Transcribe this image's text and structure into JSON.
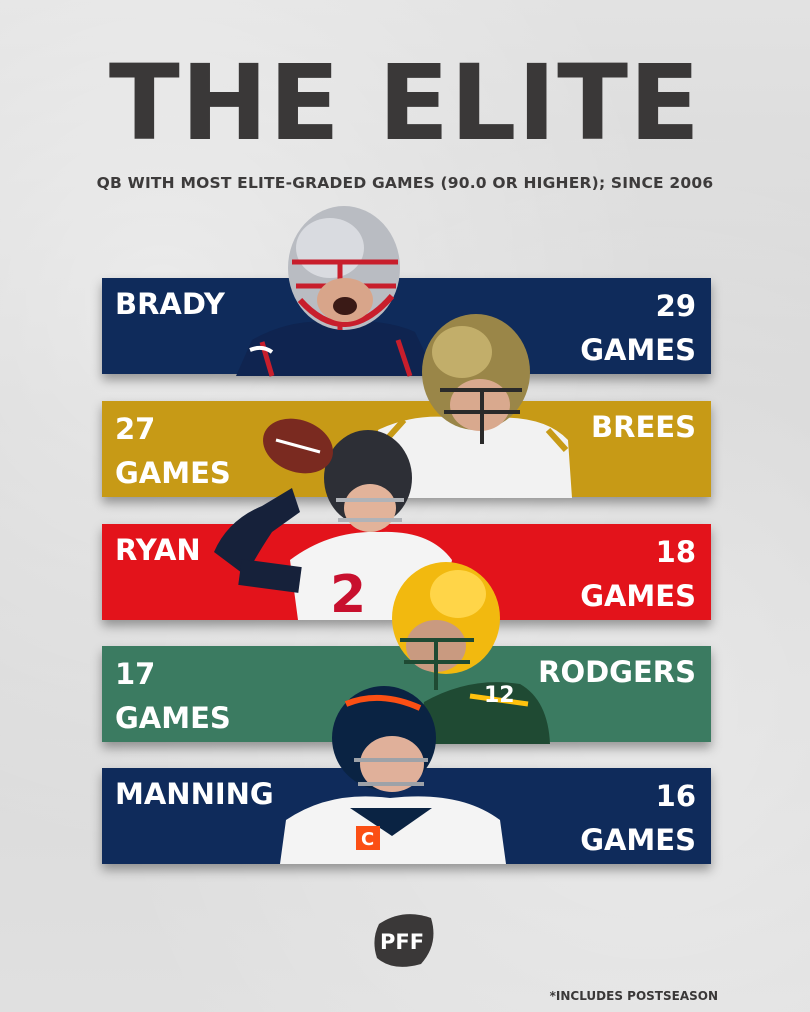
{
  "title": "THE ELITE",
  "subtitle": "QB WITH MOST ELITE-GRADED GAMES (90.0 OR HIGHER); SINCE 2006",
  "rows": [
    {
      "name": "BRADY",
      "count": "29",
      "unit": "GAMES",
      "color": "#0f2b5b",
      "helmet": "silver-helmet"
    },
    {
      "name": "BREES",
      "count": "27",
      "unit": "GAMES",
      "color": "#c79a16",
      "helmet": "gold-helmet"
    },
    {
      "name": "RYAN",
      "count": "18",
      "unit": "GAMES",
      "color": "#e3131b",
      "helmet": "black-helmet"
    },
    {
      "name": "RODGERS",
      "count": "17",
      "unit": "GAMES",
      "color": "#3b7b61",
      "helmet": "yellow-helmet"
    },
    {
      "name": "MANNING",
      "count": "16",
      "unit": "GAMES",
      "color": "#0f2b5b",
      "helmet": "navy-helmet"
    }
  ],
  "logo": "PFF",
  "footnote": "*INCLUDES POSTSEASON"
}
